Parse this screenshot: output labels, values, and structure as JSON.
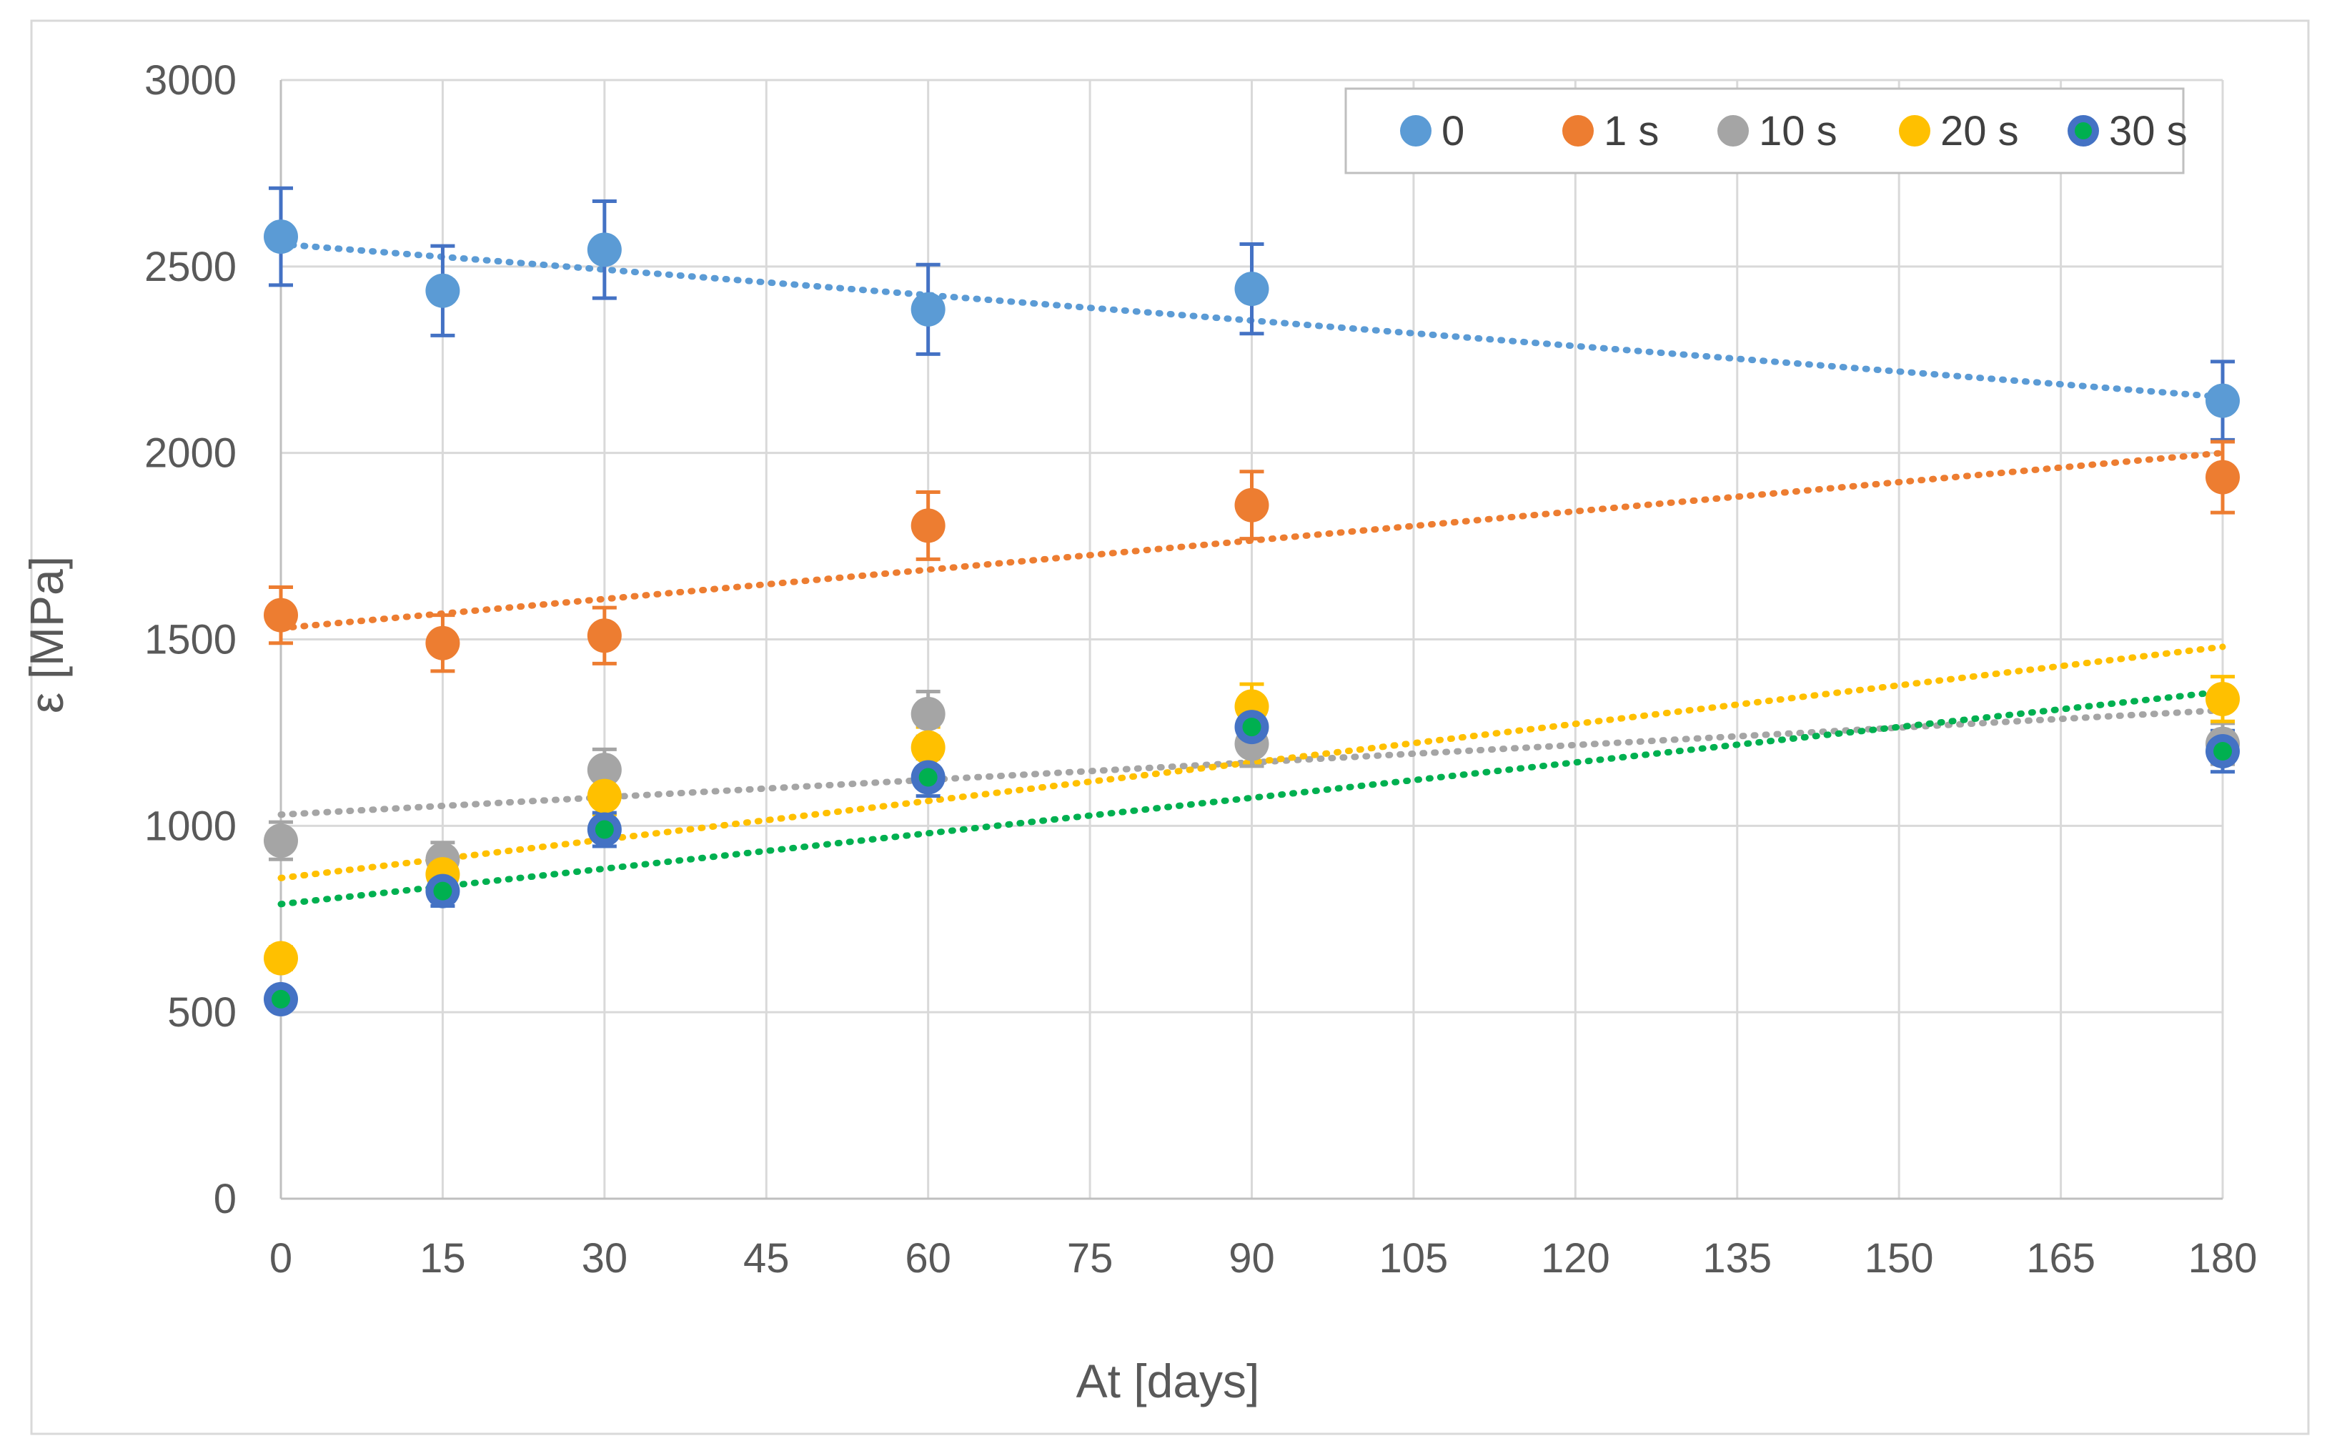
{
  "chart_data": {
    "type": "scatter",
    "title": "",
    "xlabel": "At [days]",
    "ylabel": "ε [MPa]",
    "xlim": [
      0,
      180
    ],
    "ylim": [
      0,
      3000
    ],
    "xticks": [
      "0",
      "15",
      "30",
      "45",
      "60",
      "75",
      "90",
      "105",
      "120",
      "135",
      "150",
      "165",
      "180"
    ],
    "yticks": [
      "0",
      "500",
      "1000",
      "1500",
      "2000",
      "2500",
      "3000"
    ],
    "grid": true,
    "legend_position": "top-right",
    "series": [
      {
        "name": "0",
        "color": "#5B9BD5",
        "error_color": "#4472C4",
        "trendline": true,
        "x": [
          0,
          15,
          30,
          60,
          90,
          180
        ],
        "values": [
          2580,
          2435,
          2545,
          2385,
          2440,
          2140
        ],
        "errors": [
          130,
          120,
          130,
          120,
          120,
          105
        ],
        "trend": [
          2560,
          2150
        ]
      },
      {
        "name": "1 s",
        "color": "#ED7D31",
        "error_color": "#ED7D31",
        "trendline": true,
        "x": [
          0,
          15,
          30,
          60,
          90,
          180
        ],
        "values": [
          1565,
          1490,
          1510,
          1805,
          1860,
          1935
        ],
        "errors": [
          75,
          75,
          75,
          90,
          90,
          95
        ],
        "trend": [
          1530,
          2000
        ]
      },
      {
        "name": "10 s",
        "color": "#A5A5A5",
        "error_color": "#A5A5A5",
        "trendline": true,
        "x": [
          0,
          15,
          30,
          60,
          90,
          180
        ],
        "values": [
          960,
          910,
          1150,
          1300,
          1220,
          1220
        ],
        "errors": [
          50,
          45,
          55,
          60,
          60,
          55
        ],
        "trend": [
          1030,
          1310
        ]
      },
      {
        "name": "20 s",
        "color": "#FFC000",
        "error_color": "#FFC000",
        "trendline": true,
        "x": [
          0,
          15,
          30,
          60,
          90,
          180
        ],
        "values": [
          645,
          870,
          1080,
          1210,
          1320,
          1340
        ],
        "errors": [
          30,
          40,
          50,
          55,
          60,
          60
        ],
        "trend": [
          860,
          1480
        ]
      },
      {
        "name": "30 s",
        "color": "#4472C4",
        "error_color": "#4472C4",
        "inner_color": "#00B050",
        "trendline": true,
        "trend_color": "#00B050",
        "x": [
          0,
          15,
          30,
          60,
          90,
          180
        ],
        "values": [
          535,
          825,
          990,
          1130,
          1265,
          1200
        ],
        "errors": [
          25,
          40,
          45,
          50,
          55,
          55
        ],
        "trend": [
          790,
          1360
        ]
      }
    ]
  }
}
